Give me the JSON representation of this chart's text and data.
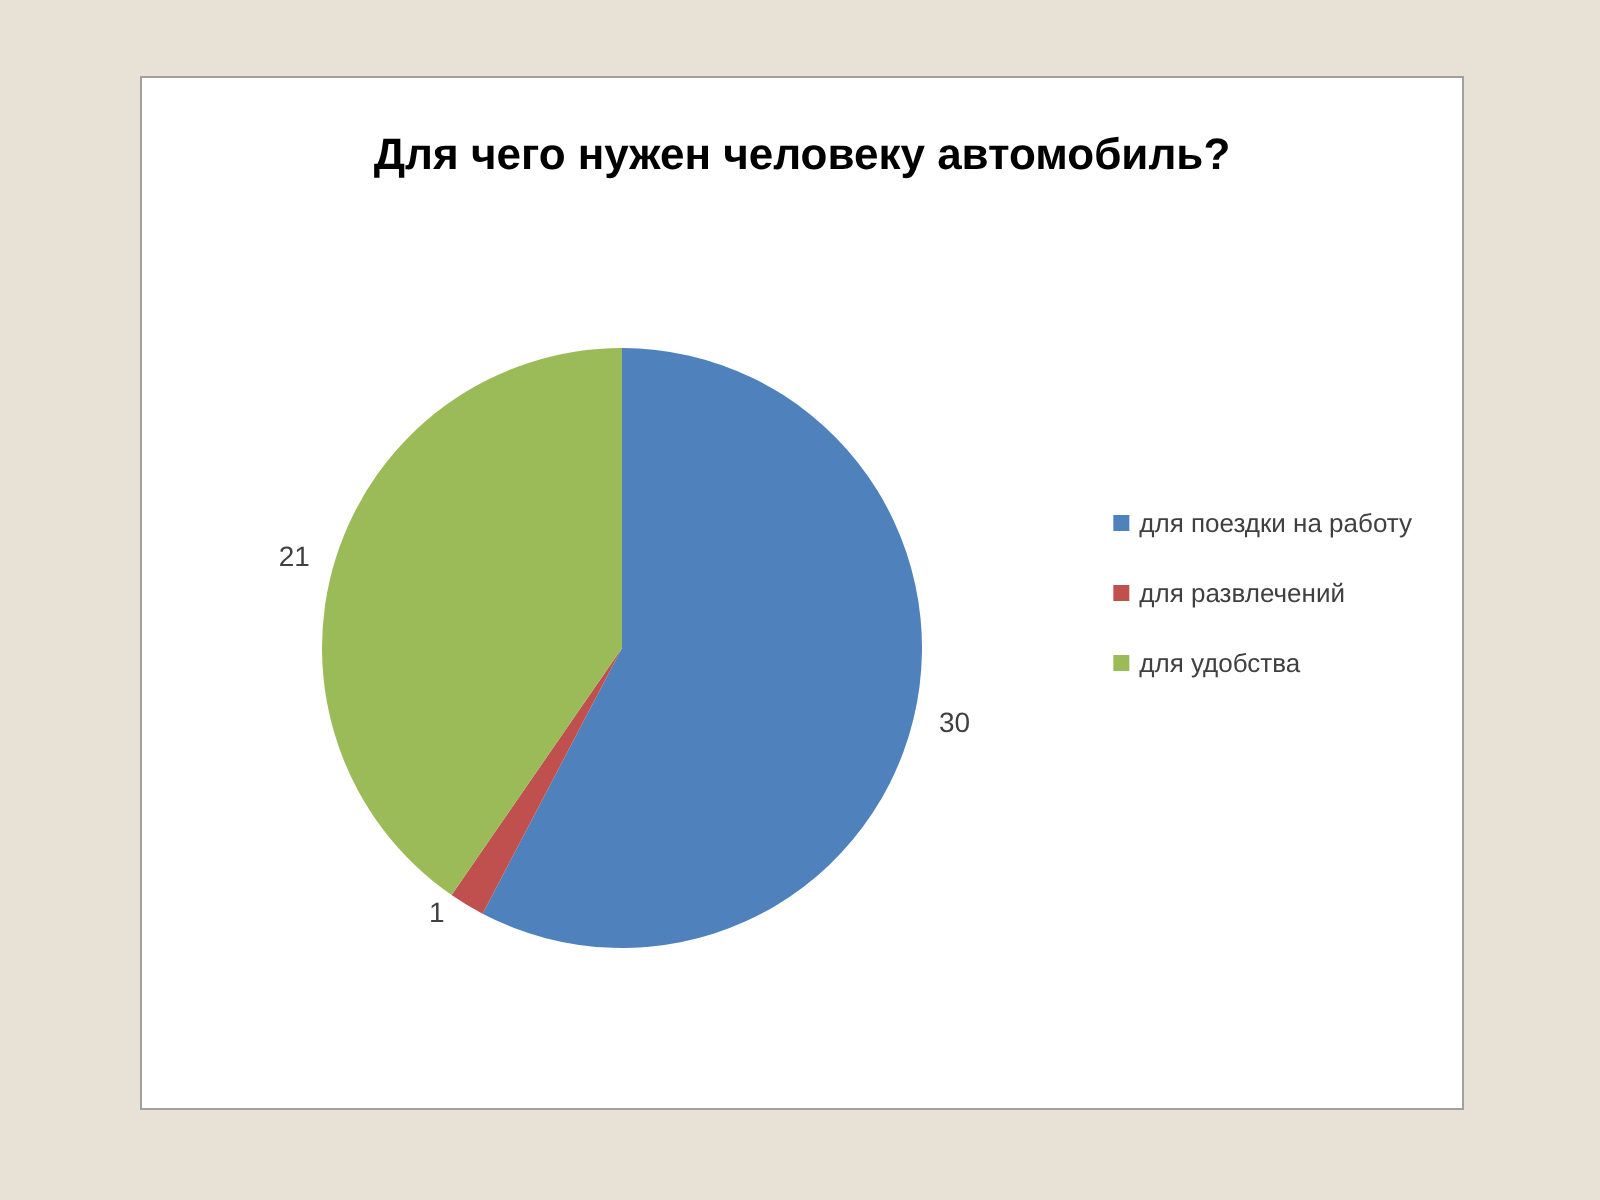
{
  "chart_data": {
    "type": "pie",
    "title": "Для чего нужен человеку автомобиль?",
    "categories": [
      "для поездки на работу",
      "для развлечений",
      "для удобства"
    ],
    "values": [
      30,
      1,
      21
    ],
    "colors": [
      "#4f81bd",
      "#c0504d",
      "#9bbb59"
    ],
    "data_labels": true,
    "legend": "right"
  }
}
